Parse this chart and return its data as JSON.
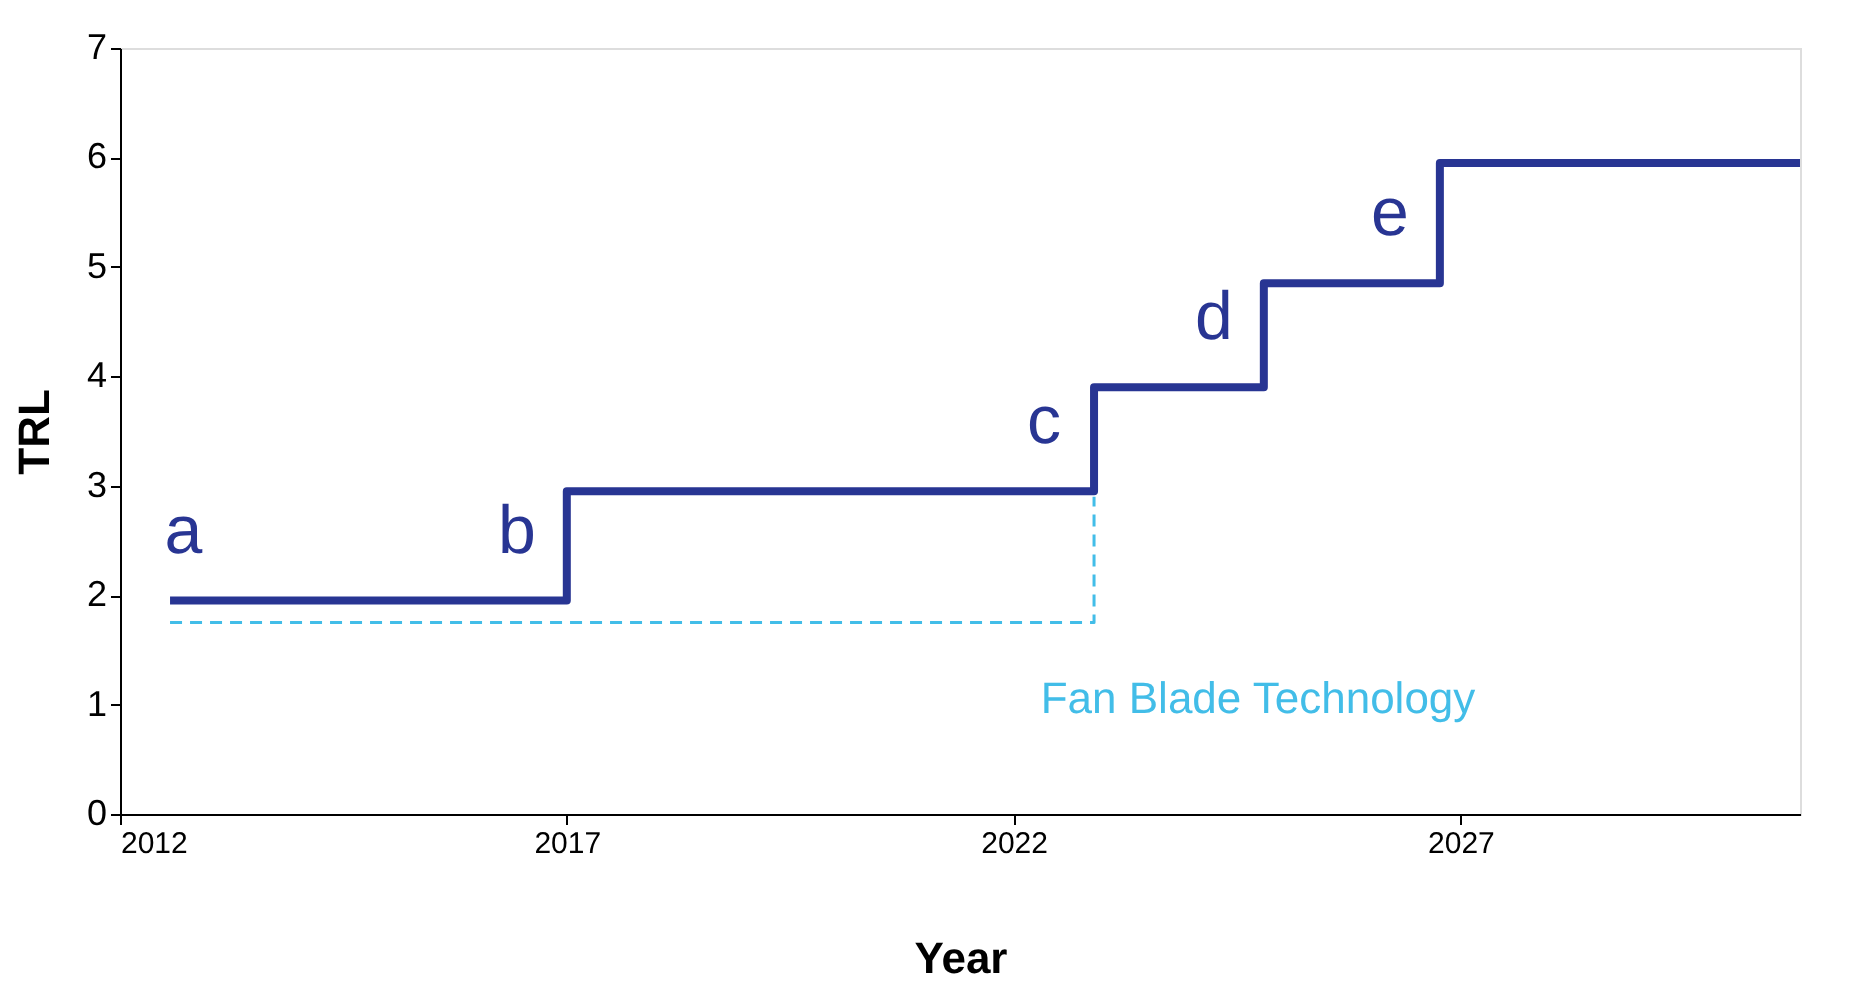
{
  "chart_data": {
    "type": "step",
    "xlabel": "Year",
    "ylabel": "TRL",
    "xlim": [
      2012,
      2030.8
    ],
    "xticks": [
      2012,
      2017,
      2022,
      2027
    ],
    "ylim": [
      0,
      7
    ],
    "yticks": [
      0,
      1,
      2,
      3,
      4,
      5,
      6,
      7
    ],
    "grid": false,
    "legend": false,
    "series": [
      {
        "type": "step",
        "line_style": "solid",
        "color": "#283593",
        "x": [
          2012.56,
          2017,
          2022.9,
          2024.8,
          2026.77,
          2030.8
        ],
        "values": [
          1.95,
          2.95,
          3.9,
          4.85,
          5.95,
          5.95
        ]
      },
      {
        "type": "line",
        "name": "Fan Blade Technology",
        "color": "#42bde8",
        "line_style": "dashed",
        "x": [
          2012.56,
          2022.9,
          2022.9
        ],
        "values": [
          1.75,
          1.75,
          2.9
        ]
      }
    ],
    "annotations": [
      {
        "text": "a",
        "x": 2013.27,
        "y": 1.95
      },
      {
        "text": "b",
        "x": 2017,
        "y": 1.95
      },
      {
        "text": "c",
        "x": 2022.9,
        "y": 2.95
      },
      {
        "text": "d",
        "x": 2024.8,
        "y": 3.9
      },
      {
        "text": "e",
        "x": 2026.77,
        "y": 4.85
      }
    ]
  }
}
